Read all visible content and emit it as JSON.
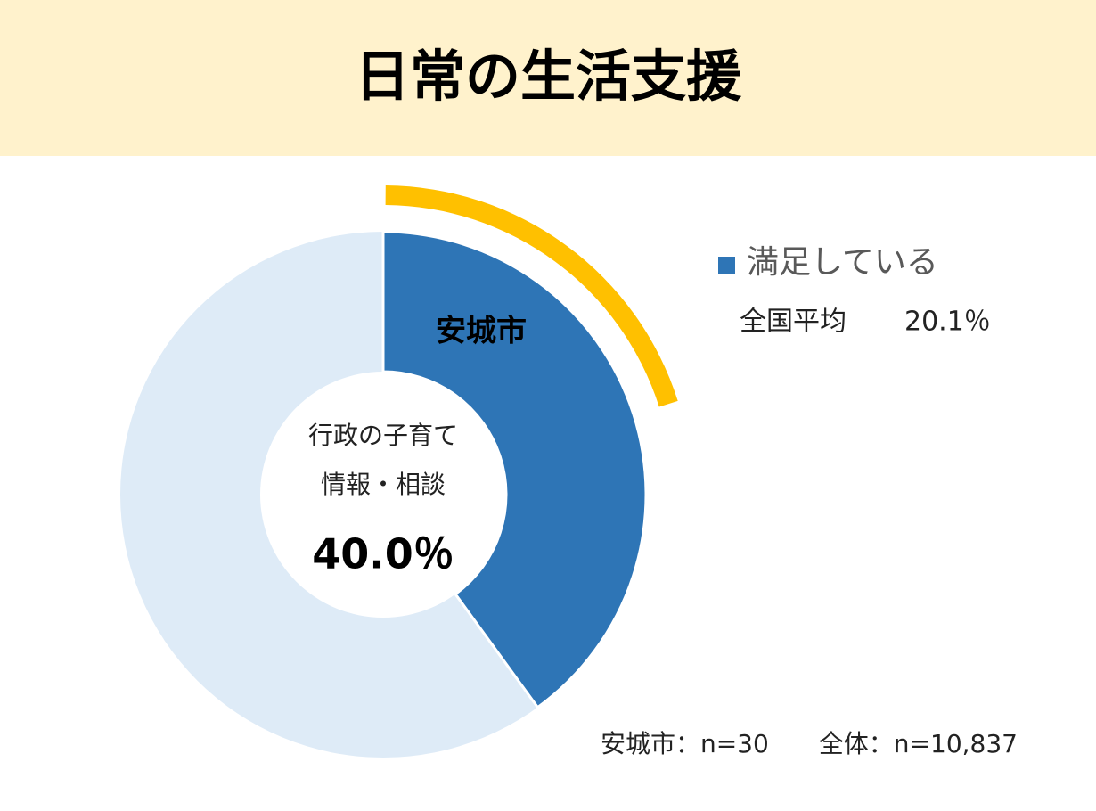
{
  "chart_data": {
    "type": "donut",
    "title": "日常の生活支援",
    "series": [
      {
        "name": "満足している",
        "color": "#2e75b6",
        "values": [
          40.0
        ],
        "value_labels": [
          "40.0％"
        ]
      }
    ],
    "background_color": "#deebf7",
    "segment_label": "安城市",
    "center_label": [
      "行政の子育て",
      "情報・相談"
    ],
    "benchmark": {
      "label": "全国平均",
      "value": 20.1,
      "value_label": "20.1％",
      "color": "#ffc000"
    },
    "note": "安城市：n=30　　全体：n=10,837"
  }
}
